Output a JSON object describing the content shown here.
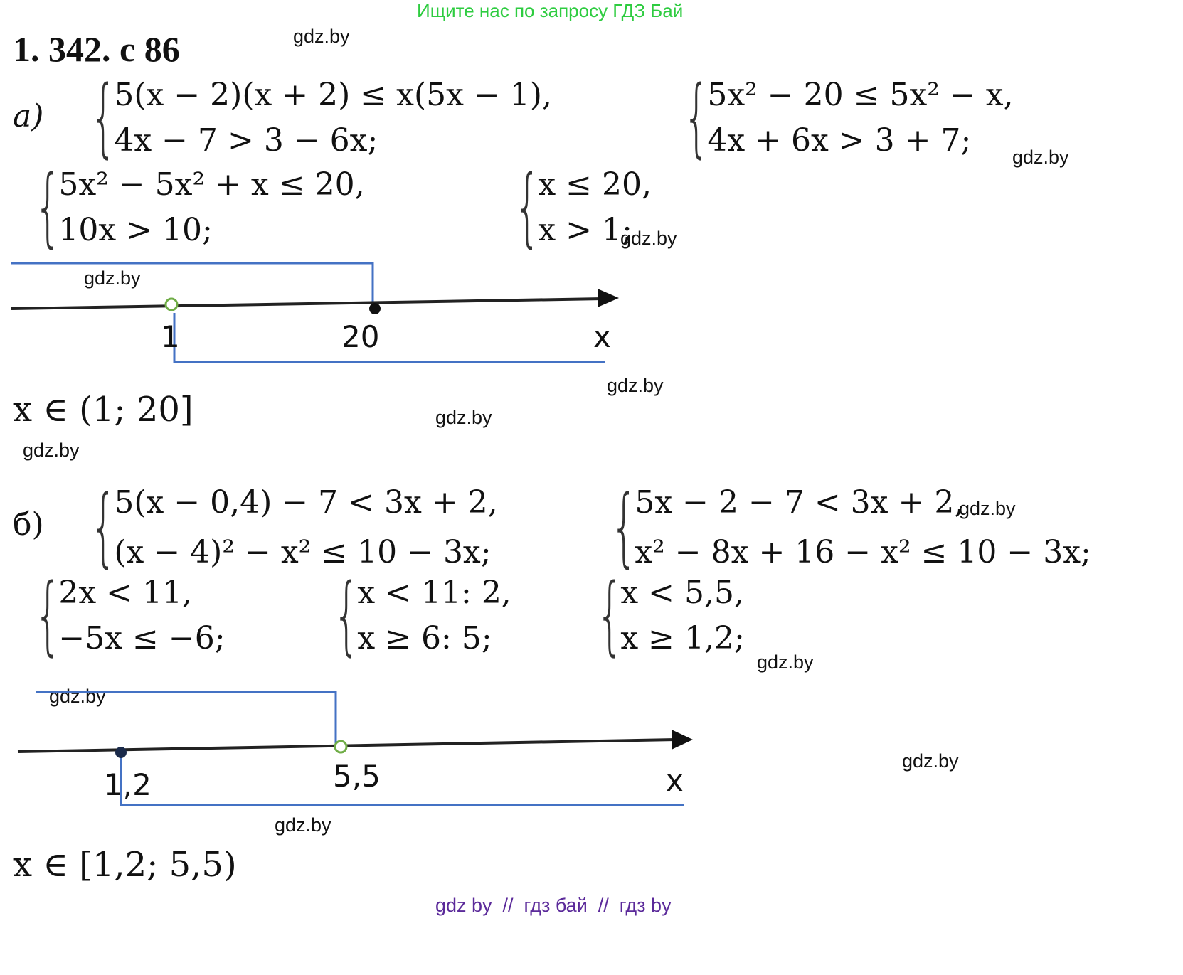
{
  "banner": "Ищите нас по запросу ГДЗ Бай",
  "title": "1. 342. с 86",
  "watermark": "gdz.by",
  "part_a": {
    "label": "а)",
    "sys1": [
      "5(x − 2)(x + 2) ≤ x(5x − 1),",
      "4x − 7 > 3 − 6x;"
    ],
    "sys2": [
      "5x² − 20 ≤ 5x² − x,",
      "4x + 6x > 3 + 7;"
    ],
    "sys3": [
      "5x² − 5x² + x ≤ 20,",
      "10x > 10;"
    ],
    "sys4": [
      "x ≤ 20,",
      "x > 1;"
    ],
    "number_line": {
      "points": [
        "1",
        "20"
      ],
      "axis": "x",
      "open_point": "1",
      "closed_point": "20"
    },
    "answer": "x ∈ (1; 20]"
  },
  "part_b": {
    "label": "б)",
    "sys1": [
      "5(x − 0,4) − 7 < 3x + 2,",
      "(x − 4)² − x² ≤ 10 − 3x;"
    ],
    "sys2": [
      "5x − 2 − 7 < 3x + 2,",
      "x² − 8x + 16 − x² ≤ 10 − 3x;"
    ],
    "sys3": [
      "2x < 11,",
      "−5x ≤ −6;"
    ],
    "sys4": [
      "x < 11: 2,",
      "x ≥ 6: 5;"
    ],
    "sys5": [
      "x < 5,5,",
      "x ≥ 1,2;"
    ],
    "number_line": {
      "points": [
        "1,2",
        "5,5"
      ],
      "axis": "x",
      "open_point": "5,5",
      "closed_point": "1,2"
    },
    "answer": "x ∈ [1,2; 5,5)"
  },
  "footer": "gdz by  //  гдз бай  //  гдз by",
  "colors": {
    "banner": "#2ecc40",
    "interval": "#4472c4",
    "open_point": "#70ad47",
    "footer": "#5b2a9a"
  }
}
